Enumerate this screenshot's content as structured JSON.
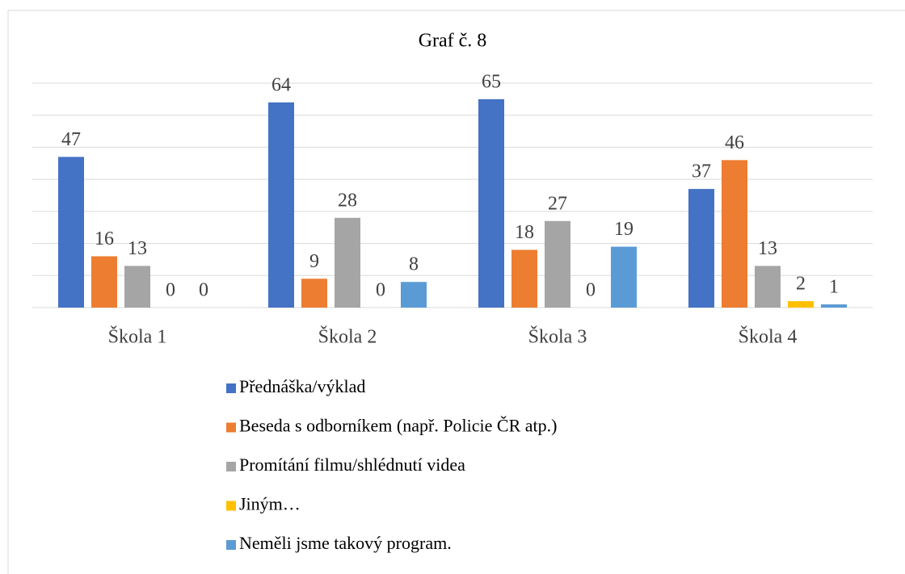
{
  "chart_data": {
    "type": "bar",
    "title": "Graf č. 8",
    "categories": [
      "Škola 1",
      "Škola 2",
      "Škola 3",
      "Škola 4"
    ],
    "series": [
      {
        "name": "Přednáška/výklad",
        "color": "#4472c4",
        "values": [
          47,
          64,
          65,
          37
        ]
      },
      {
        "name": "Beseda s odborníkem (např. Policie ČR atp.)",
        "color": "#ed7d31",
        "values": [
          16,
          9,
          18,
          46
        ]
      },
      {
        "name": "Promítání filmu/shlédnutí videa",
        "color": "#a5a5a5",
        "values": [
          13,
          28,
          27,
          13
        ]
      },
      {
        "name": "Jiným…",
        "color": "#ffc000",
        "values": [
          0,
          0,
          0,
          2
        ]
      },
      {
        "name": "Neměli jsme takový program.",
        "color": "#5b9bd5",
        "values": [
          0,
          8,
          19,
          1
        ]
      }
    ],
    "ylim": [
      0,
      70
    ],
    "yticks": [
      0,
      10,
      20,
      30,
      40,
      50,
      60,
      70
    ],
    "grid": true,
    "legend": "bottom"
  }
}
